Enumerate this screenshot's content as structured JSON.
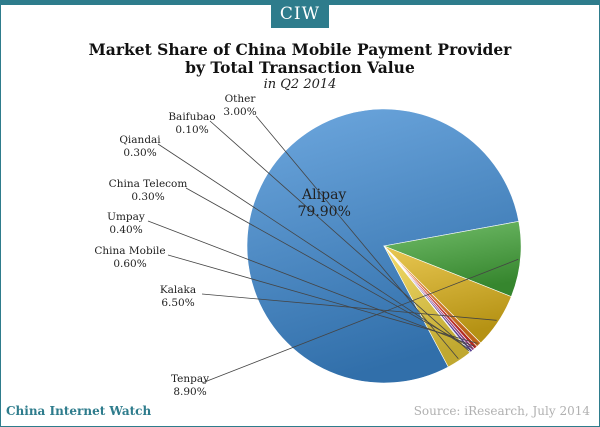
{
  "header": {
    "badge": "CIW"
  },
  "footer": {
    "brand": "China Internet Watch",
    "source": "Source: iResearch, July 2014"
  },
  "chart_data": {
    "type": "pie",
    "title": "Market Share of China Mobile Payment Provider",
    "title_line2": "by Total Transaction Value",
    "subtitle": "in Q2 2014",
    "slices": [
      {
        "name": "Alipay",
        "value": 79.9,
        "label": "79.90%",
        "color": "#3d8bd4"
      },
      {
        "name": "Tenpay",
        "value": 8.9,
        "label": "8.90%",
        "color": "#44a83a"
      },
      {
        "name": "Kalaka",
        "value": 6.5,
        "label": "6.50%",
        "color": "#e2b619"
      },
      {
        "name": "China Mobile",
        "value": 0.6,
        "label": "0.60%",
        "color": "#ee7d1f"
      },
      {
        "name": "Umpay",
        "value": 0.4,
        "label": "0.40%",
        "color": "#e0342b"
      },
      {
        "name": "China Telecom",
        "value": 0.3,
        "label": "0.30%",
        "color": "#b4479a"
      },
      {
        "name": "Qiandai",
        "value": 0.3,
        "label": "0.30%",
        "color": "#6f4fb3"
      },
      {
        "name": "Baifubao",
        "value": 0.1,
        "label": "0.10%",
        "color": "#2f5fb8"
      },
      {
        "name": "Other",
        "value": 3.0,
        "label": "3.00%",
        "color": "#f0d23c"
      }
    ]
  }
}
